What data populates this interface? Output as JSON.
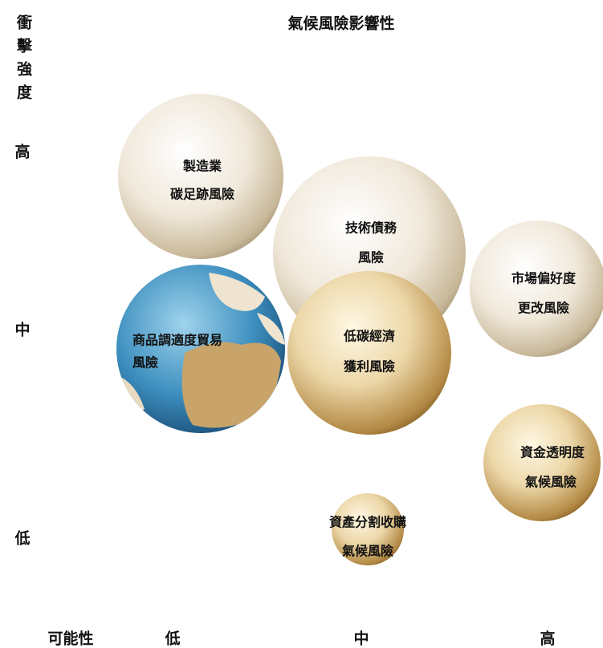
{
  "title": "氣候風險影響性",
  "y_axis": {
    "label": "衝擊強度",
    "levels": [
      "高",
      "中",
      "低"
    ]
  },
  "x_axis": {
    "label": "可能性",
    "levels": [
      "低",
      "中",
      "高"
    ]
  },
  "nodes": [
    {
      "lines": [
        "製造業",
        "碳足跡風險"
      ]
    },
    {
      "lines": [
        "技術債務",
        "風險"
      ]
    },
    {
      "lines": [
        "市場偏好度",
        "更改風險"
      ]
    },
    {
      "lines": [
        "商品調適度貿易",
        "風險"
      ]
    },
    {
      "lines": [
        "低碳經濟",
        "獲利風險"
      ]
    },
    {
      "lines": [
        "資金透明度",
        "氣候風險"
      ]
    },
    {
      "lines": [
        "資產分割收購",
        "氣候風險"
      ]
    }
  ]
}
